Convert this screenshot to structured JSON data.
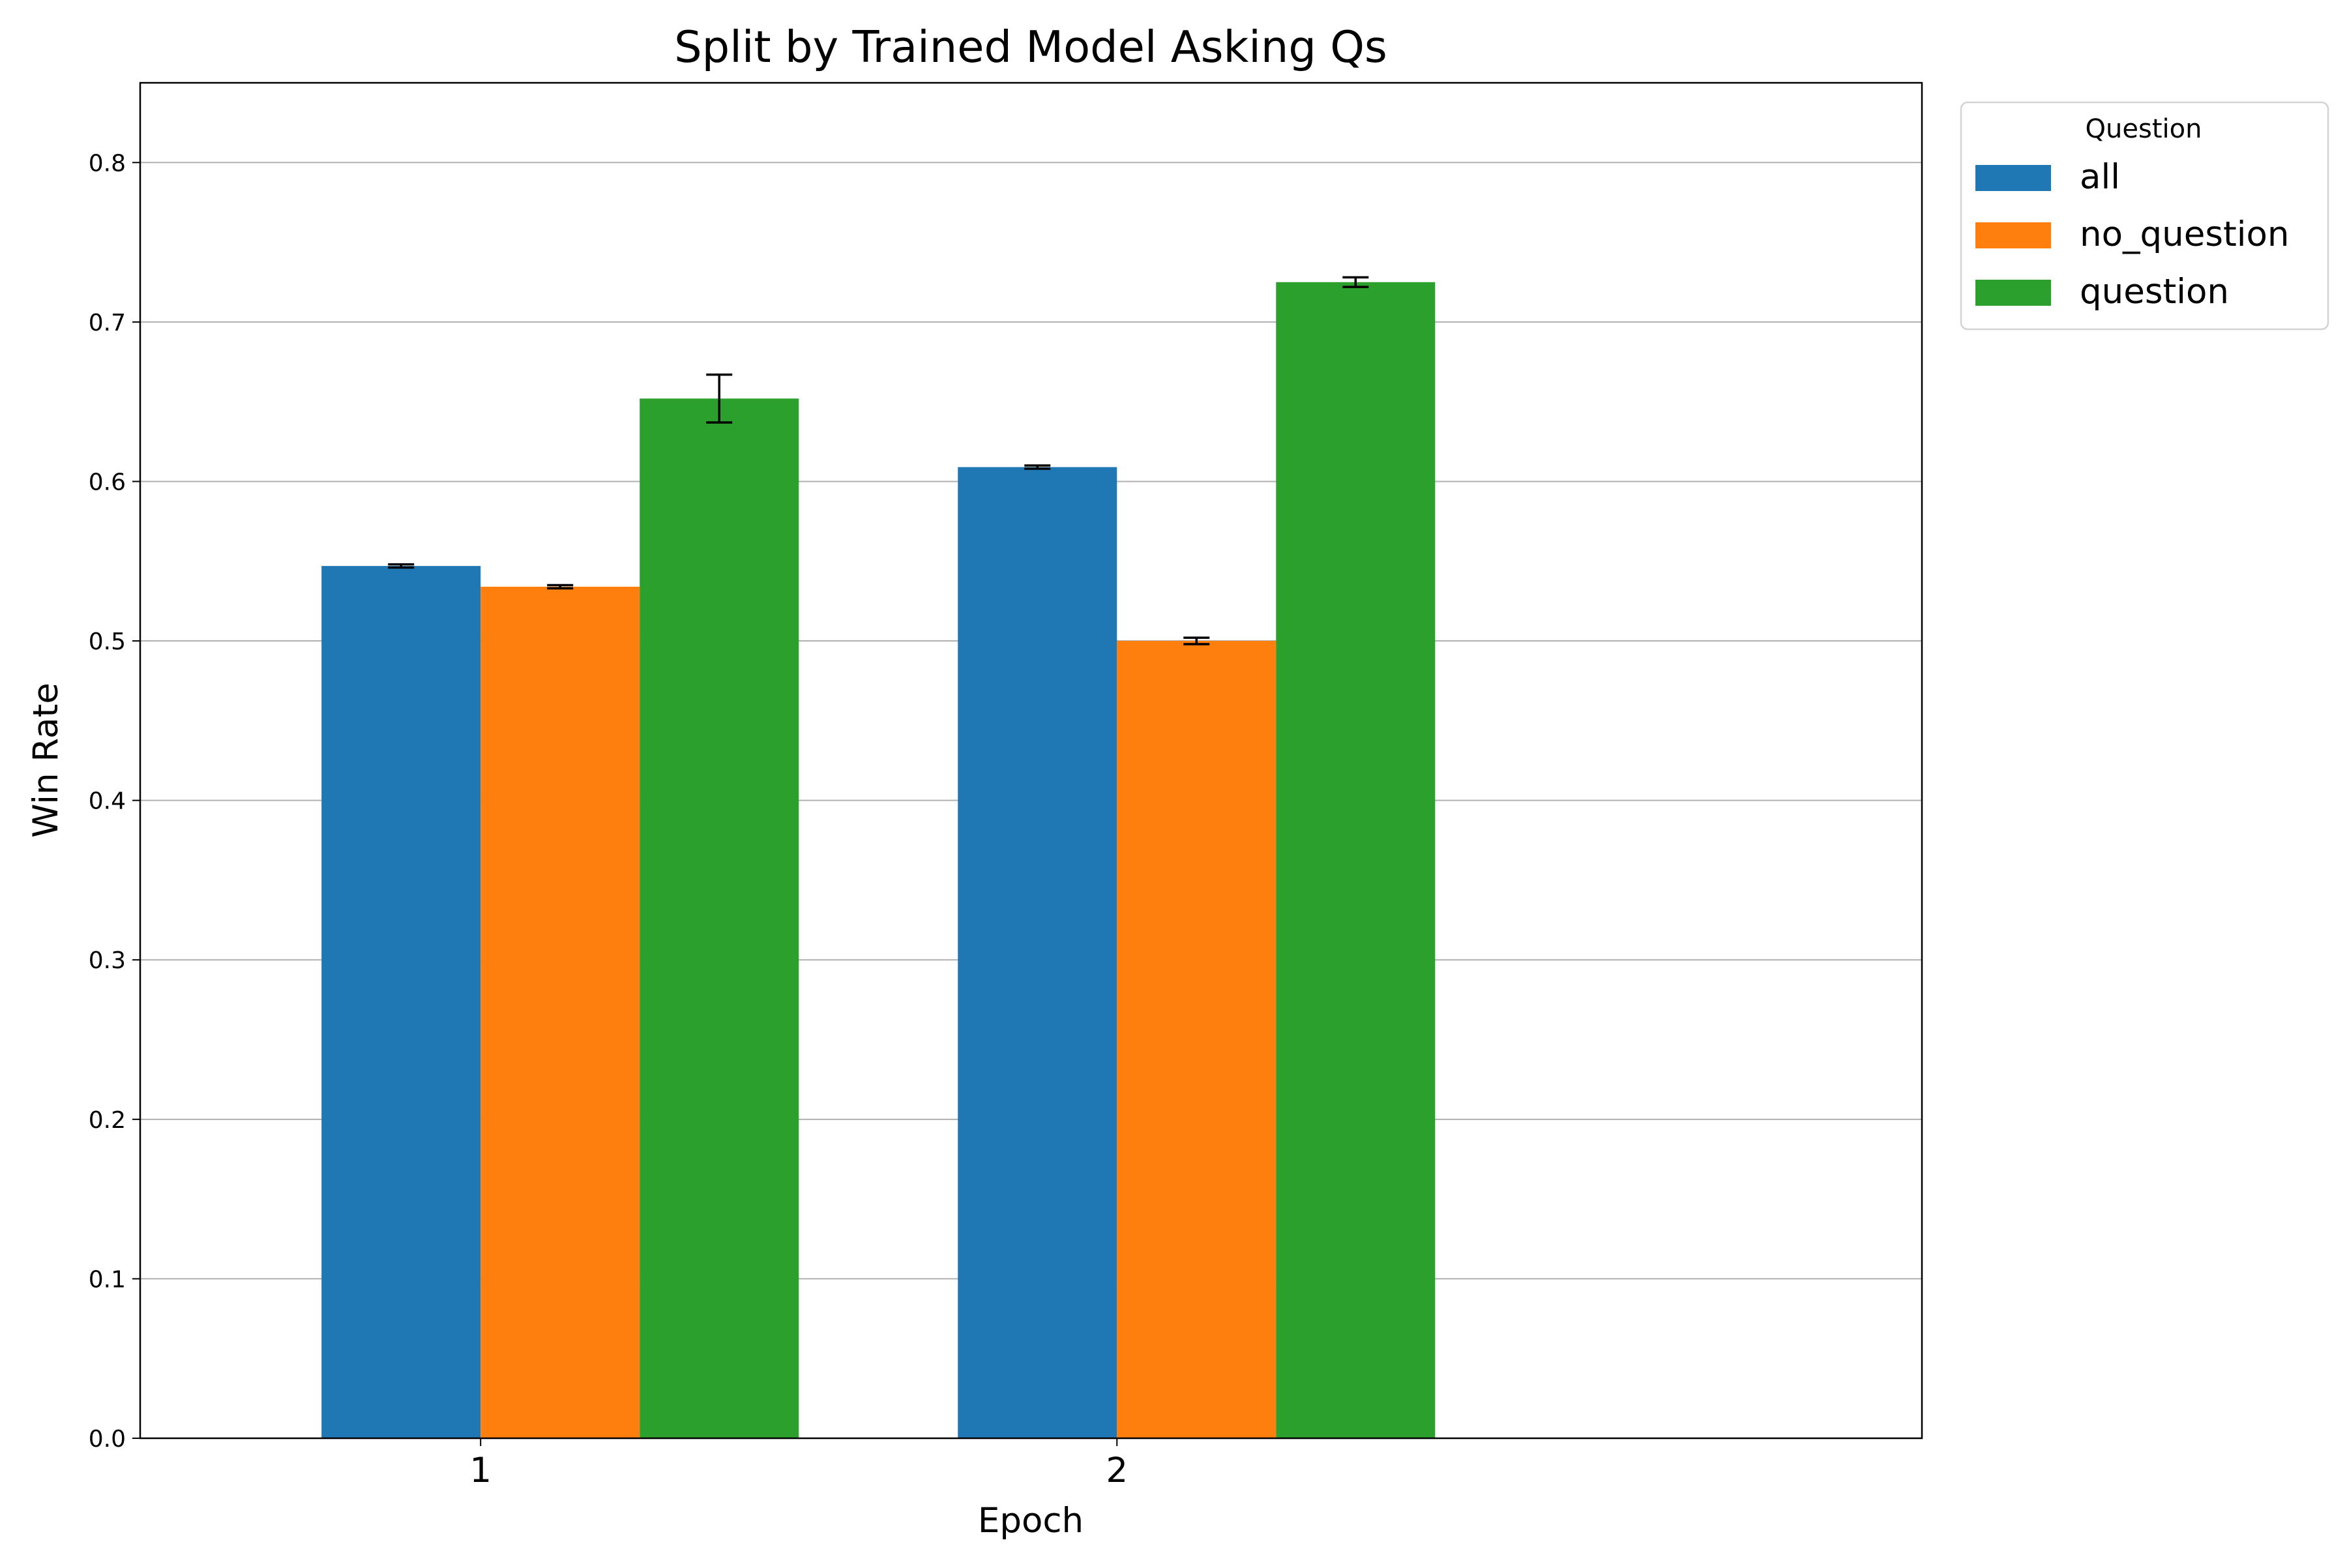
{
  "chart_data": {
    "type": "bar",
    "title": "Split by Trained Model Asking Qs",
    "xlabel": "Epoch",
    "ylabel": "Win Rate",
    "categories": [
      "1",
      "2"
    ],
    "ylim": [
      0,
      0.85
    ],
    "yticks": [
      "0.0",
      "0.1",
      "0.2",
      "0.3",
      "0.4",
      "0.5",
      "0.6",
      "0.7",
      "0.8"
    ],
    "grid": "horizontal",
    "legend": {
      "title": "Question",
      "position": "outside-top-right"
    },
    "series": [
      {
        "name": "all",
        "color": "#1f77b4",
        "values": [
          0.547,
          0.609
        ],
        "errors": [
          0.001,
          0.001
        ]
      },
      {
        "name": "no_question",
        "color": "#ff7f0e",
        "values": [
          0.534,
          0.5
        ],
        "errors": [
          0.001,
          0.002
        ]
      },
      {
        "name": "question",
        "color": "#2ca02c",
        "values": [
          0.652,
          0.725
        ],
        "errors": [
          0.015,
          0.003
        ]
      }
    ]
  }
}
